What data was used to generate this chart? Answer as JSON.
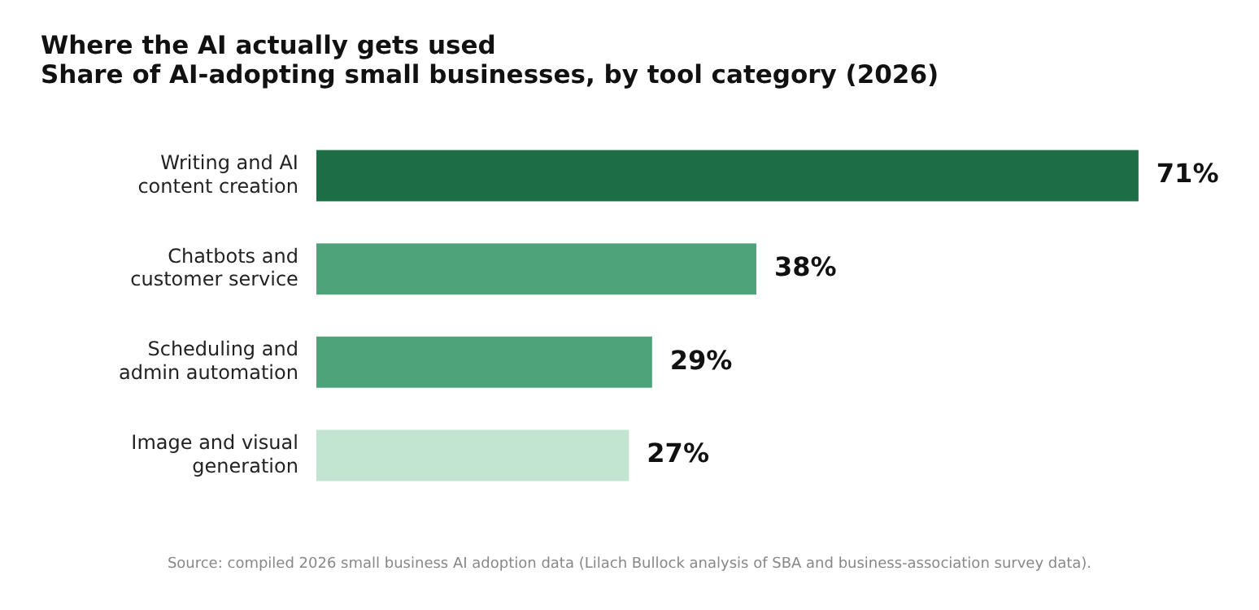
{
  "chart_data": {
    "type": "bar",
    "orientation": "horizontal",
    "title": "Where the AI actually gets used",
    "subtitle": "Share of AI-adopting small businesses, by tool category (2026)",
    "categories": [
      "Writing and AI content creation",
      "Chatbots and customer service",
      "Scheduling and admin automation",
      "Image and visual generation"
    ],
    "values": [
      71,
      38,
      29,
      27
    ],
    "colors": [
      "#1d6e47",
      "#4fa37a",
      "#4fa37a",
      "#c2e5d1"
    ],
    "value_labels": [
      "71%",
      "38%",
      "29%",
      "27%"
    ],
    "legend": false,
    "annotations": [
      "Source: compiled 2026 small business AI adoption data (Lilach Bullock analysis of SBA and business-association survey data)."
    ]
  }
}
